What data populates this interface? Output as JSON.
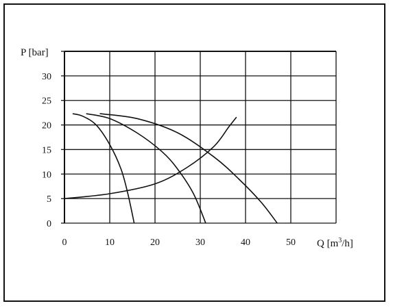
{
  "chart_data": {
    "type": "line",
    "ylabel": "P [bar]",
    "xlabel_prefix": "Q [m",
    "xlabel_sup": "3",
    "xlabel_suffix": "/h]",
    "xlim": [
      0,
      60
    ],
    "ylim": [
      0,
      35
    ],
    "xticks": [
      0,
      10,
      20,
      30,
      40,
      50
    ],
    "yticks": [
      0,
      5,
      10,
      15,
      20,
      25,
      30
    ],
    "grid": true,
    "series": [
      {
        "values": [
          [
            1.8,
            22.3
          ],
          [
            4,
            21.8
          ],
          [
            7,
            20
          ],
          [
            10,
            16
          ],
          [
            12.5,
            11
          ],
          [
            14,
            6
          ],
          [
            15.4,
            0
          ]
        ]
      },
      {
        "values": [
          [
            4.8,
            22.3
          ],
          [
            10,
            21.3
          ],
          [
            16,
            18.4
          ],
          [
            21.5,
            14.6
          ],
          [
            25,
            11
          ],
          [
            28.5,
            6
          ],
          [
            31.2,
            0
          ]
        ]
      },
      {
        "values": [
          [
            7.8,
            22.3
          ],
          [
            16,
            21.3
          ],
          [
            25,
            18.4
          ],
          [
            33,
            13.5
          ],
          [
            38.5,
            9
          ],
          [
            43.5,
            4.2
          ],
          [
            47,
            0
          ]
        ]
      },
      {
        "values": [
          [
            0,
            5
          ],
          [
            10,
            6
          ],
          [
            20,
            8
          ],
          [
            27,
            11.3
          ],
          [
            33,
            15.6
          ],
          [
            36.3,
            19.6
          ],
          [
            38,
            21.6
          ]
        ]
      }
    ]
  }
}
